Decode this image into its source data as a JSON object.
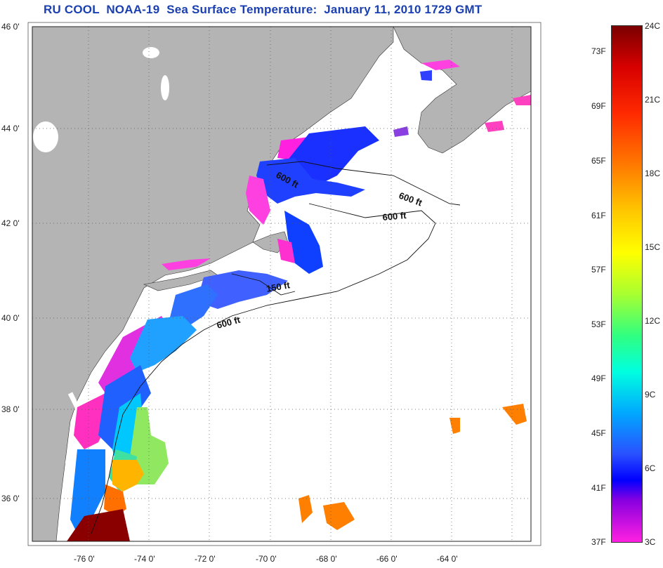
{
  "title": "RU COOL  NOAA-19  Sea Surface Temperature:  January 11, 2010 1729 GMT",
  "map": {
    "lat_labels": [
      "46 0'",
      "44 0'",
      "42 0'",
      "40 0'",
      "38 0'",
      "36 0'"
    ],
    "lon_labels": [
      "-76 0'",
      "-74 0'",
      "-72 0'",
      "-70 0'",
      "-68 0'",
      "-66 0'",
      "-64 0'"
    ],
    "contour_labels": [
      "600 ft",
      "600 ft",
      "600 ft",
      "150 ft",
      "600 ft"
    ],
    "colors": {
      "land": "#b4b4b4",
      "no_data": "#ffffff"
    }
  },
  "colorbar": {
    "fahrenheit_labels": [
      "73F",
      "69F",
      "65F",
      "61F",
      "57F",
      "53F",
      "49F",
      "45F",
      "41F",
      "37F"
    ],
    "celsius_labels": [
      "24C",
      "21C",
      "18C",
      "15C",
      "12C",
      "9C",
      "6C",
      "3C"
    ],
    "scale_colors": [
      "#7a0000",
      "#ff0000",
      "#ff8000",
      "#ffff00",
      "#40ff80",
      "#00ffff",
      "#0080ff",
      "#0000ff",
      "#ff20e0"
    ]
  }
}
